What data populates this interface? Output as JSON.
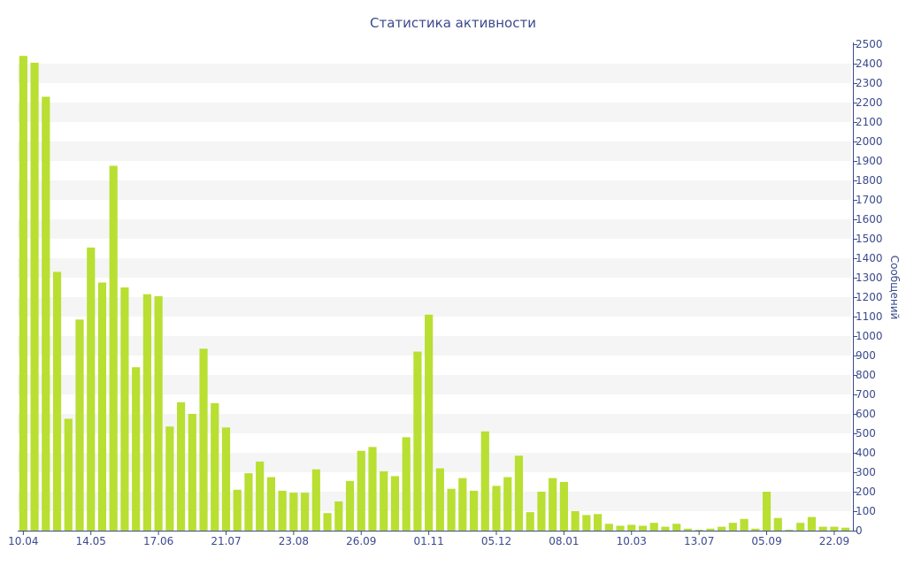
{
  "chart_data": {
    "type": "bar",
    "title": "Статистика активности",
    "ylabel": "Сообщений",
    "xlabel": "",
    "ylim": [
      0,
      2500
    ],
    "y_ticks": [
      0,
      100,
      200,
      300,
      400,
      500,
      600,
      700,
      800,
      900,
      1000,
      1100,
      1200,
      1300,
      1400,
      1500,
      1600,
      1700,
      1800,
      1900,
      2000,
      2100,
      2200,
      2300,
      2400,
      2500
    ],
    "y_axis_position": "right",
    "grid": "alternating horizontal bands",
    "x_tick_labels": [
      {
        "index": 0,
        "label": "10.04"
      },
      {
        "index": 6,
        "label": "14.05"
      },
      {
        "index": 12,
        "label": "17.06"
      },
      {
        "index": 18,
        "label": "21.07"
      },
      {
        "index": 24,
        "label": "23.08"
      },
      {
        "index": 30,
        "label": "26.09"
      },
      {
        "index": 36,
        "label": "01.11"
      },
      {
        "index": 42,
        "label": "05.12"
      },
      {
        "index": 48,
        "label": "08.01"
      },
      {
        "index": 54,
        "label": "10.03"
      },
      {
        "index": 60,
        "label": "13.07"
      },
      {
        "index": 66,
        "label": "05.09"
      },
      {
        "index": 72,
        "label": "22.09"
      }
    ],
    "values": [
      2440,
      2405,
      2230,
      1330,
      575,
      1085,
      1455,
      1275,
      1875,
      1250,
      840,
      1215,
      1205,
      535,
      660,
      600,
      935,
      655,
      530,
      210,
      295,
      355,
      275,
      205,
      195,
      195,
      315,
      90,
      150,
      255,
      410,
      430,
      305,
      280,
      480,
      920,
      1110,
      320,
      215,
      270,
      205,
      510,
      230,
      275,
      385,
      95,
      200,
      270,
      250,
      100,
      80,
      85,
      35,
      25,
      30,
      25,
      40,
      20,
      35,
      10,
      5,
      10,
      20,
      40,
      60,
      10,
      200,
      65,
      5,
      40,
      70,
      20,
      20,
      15
    ],
    "bar_color": "#b8df32",
    "band_color": "#f5f5f5",
    "text_color": "#3b4a8c"
  }
}
